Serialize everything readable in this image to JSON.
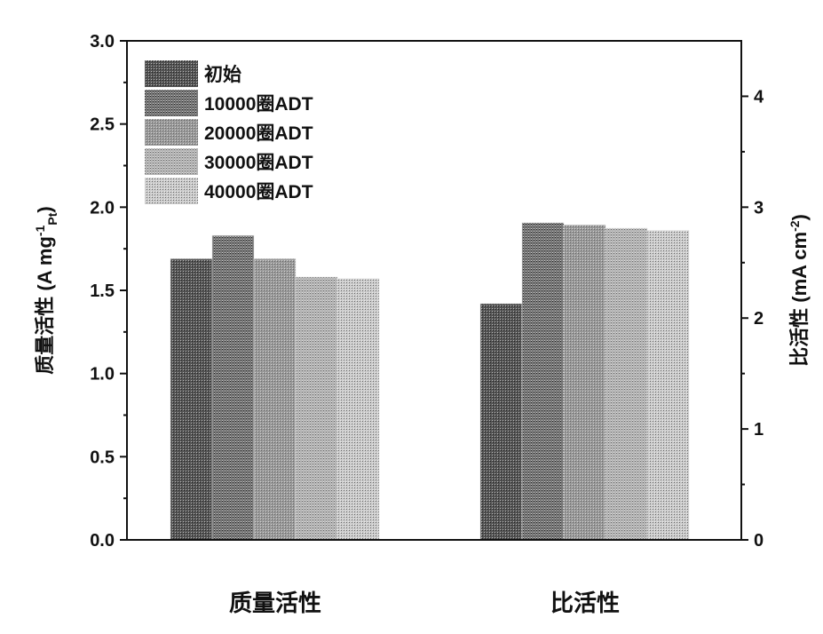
{
  "chart_data": {
    "type": "bar",
    "categories": [
      "质量活性",
      "比活性"
    ],
    "category_axis": [
      "left",
      "right"
    ],
    "ylabel_left": "质量活性 (A mg⁻¹Pt)",
    "ylabel_left_parts": {
      "main": "质量活性 (A mg",
      "sup": "-1",
      "sub": "Pt",
      "close": ")"
    },
    "ylabel_right_parts": {
      "main": "比活性 (mA cm",
      "sup": "-2",
      "close": ")"
    },
    "ylim_left": [
      0,
      3.0
    ],
    "ylim_right": [
      0,
      4.5
    ],
    "yticks_left": [
      "0.0",
      "0.5",
      "1.0",
      "1.5",
      "2.0",
      "2.5",
      "3.0"
    ],
    "yticks_right": [
      "0",
      "1",
      "2",
      "3",
      "4"
    ],
    "grid": false,
    "legend_position": "top-left",
    "series": [
      {
        "name": "初始",
        "values": [
          1.69,
          2.13
        ],
        "color": "#555555"
      },
      {
        "name": "10000圈ADT",
        "values": [
          1.83,
          2.86
        ],
        "color": "#777777"
      },
      {
        "name": "20000圈ADT",
        "values": [
          1.69,
          2.84
        ],
        "color": "#999999"
      },
      {
        "name": "30000圈ADT",
        "values": [
          1.58,
          2.81
        ],
        "color": "#b5b5b5"
      },
      {
        "name": "40000圈ADT",
        "values": [
          1.57,
          2.79
        ],
        "color": "#cccccc"
      }
    ]
  }
}
